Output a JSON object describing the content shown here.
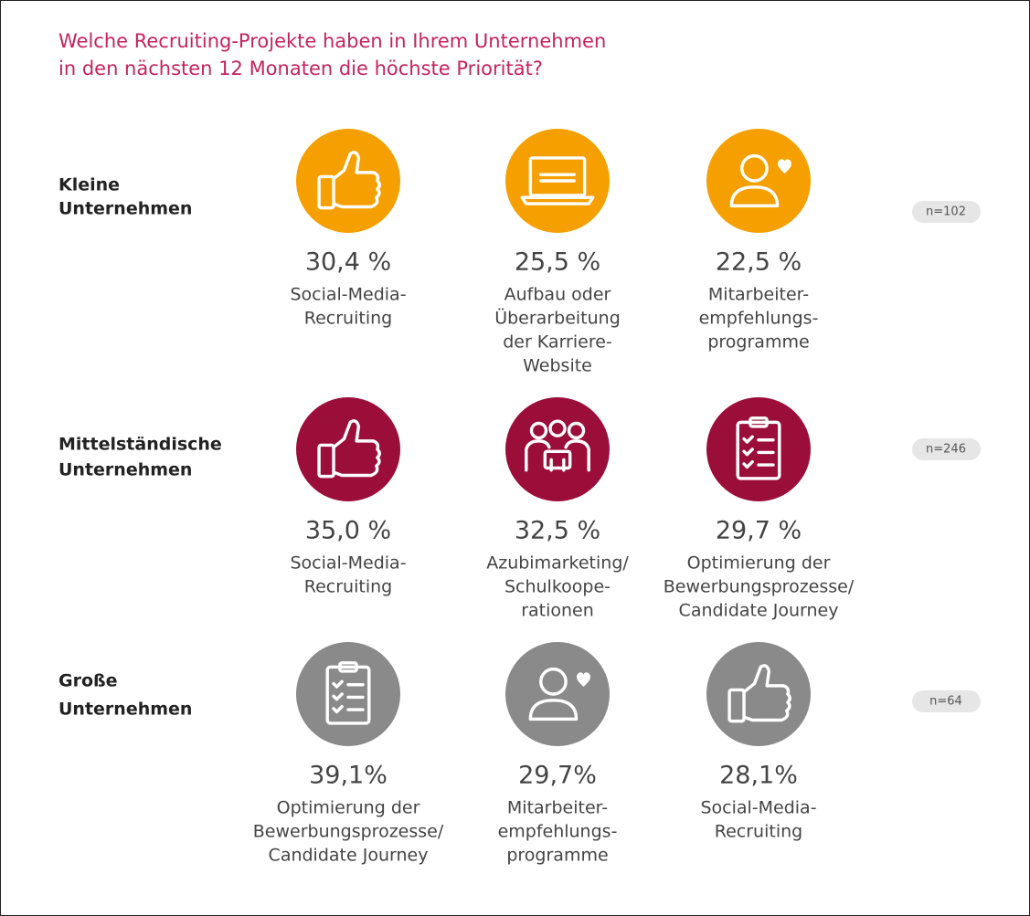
{
  "title": [
    "Welche Recruiting-Projekte haben  in Ihrem Unternehmen",
    "in den nächsten  12 Monaten die höchste Priorität?"
  ],
  "groups": [
    {
      "label": [
        "Kleine",
        "Unternehmen"
      ],
      "n": "n=102",
      "color": "#f5a000",
      "items": [
        {
          "percent": "30,4 %",
          "label": [
            "Social-Media-",
            "Recruiting"
          ]
        },
        {
          "percent": "25,5 %",
          "label": [
            "Aufbau oder",
            "Überarbeitung",
            "der Karriere-",
            "Website"
          ]
        },
        {
          "percent": "22,5 %",
          "label": [
            "Mitarbeiter-",
            "empfehlungs-",
            "programme"
          ]
        }
      ]
    },
    {
      "label": [
        "Mittelständische",
        "Unternehmen"
      ],
      "n": "n=246",
      "color": "#9b0e3a",
      "items": [
        {
          "percent": "35,0 %",
          "label": [
            "Social-Media-",
            "Recruiting"
          ]
        },
        {
          "percent": "32,5 %",
          "label": [
            "Azubimarketing/",
            "Schulkoope-",
            "rationen"
          ]
        },
        {
          "percent": "29,7 %",
          "label": [
            "Optimierung der",
            "Bewerbungsprozesse/",
            "Candidate Journey"
          ]
        }
      ]
    },
    {
      "label": [
        "Große",
        "Unternehmen"
      ],
      "n": "n=64",
      "color": "#8a8a8a",
      "items": [
        {
          "percent": "39,1%",
          "label": [
            "Optimierung der",
            "Bewerbungsprozesse/",
            "Candidate Journey"
          ]
        },
        {
          "percent": "29,7%",
          "label": [
            "Mitarbeiter-",
            "empfehlungs-",
            "programme"
          ]
        },
        {
          "percent": "28,1%",
          "label": [
            "Social-Media-",
            "Recruiting"
          ]
        }
      ]
    }
  ]
}
